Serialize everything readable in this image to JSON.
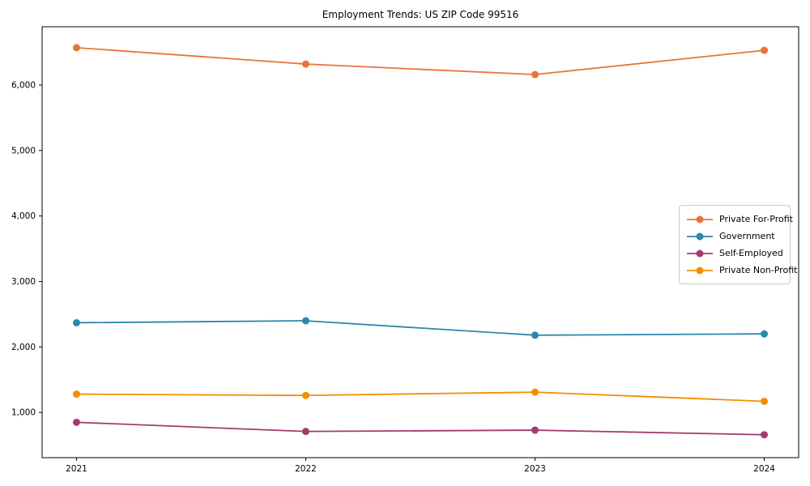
{
  "chart_data": {
    "type": "line",
    "title": "Employment Trends: US ZIP Code 99516",
    "categories": [
      "2021",
      "2022",
      "2023",
      "2024"
    ],
    "series": [
      {
        "name": "Private For-Profit",
        "color": "#E8743B",
        "values": [
          6570,
          6320,
          6160,
          6530
        ]
      },
      {
        "name": "Government",
        "color": "#2E86AB",
        "values": [
          2370,
          2400,
          2180,
          2200
        ]
      },
      {
        "name": "Self-Employed",
        "color": "#A23B72",
        "values": [
          850,
          710,
          730,
          660
        ]
      },
      {
        "name": "Private Non-Profit",
        "color": "#F18F01",
        "values": [
          1280,
          1260,
          1310,
          1170
        ]
      }
    ],
    "y_ticks": [
      {
        "value": 1000,
        "label": "1,000"
      },
      {
        "value": 2000,
        "label": "2,000"
      },
      {
        "value": 3000,
        "label": "3,000"
      },
      {
        "value": 4000,
        "label": "4,000"
      },
      {
        "value": 5000,
        "label": "5,000"
      },
      {
        "value": 6000,
        "label": "6,000"
      }
    ],
    "ylim": [
      310,
      6890
    ],
    "grid": false,
    "legend_position": "center-right",
    "marker": "circle",
    "axis_color": "#000000",
    "background": "#ffffff"
  }
}
